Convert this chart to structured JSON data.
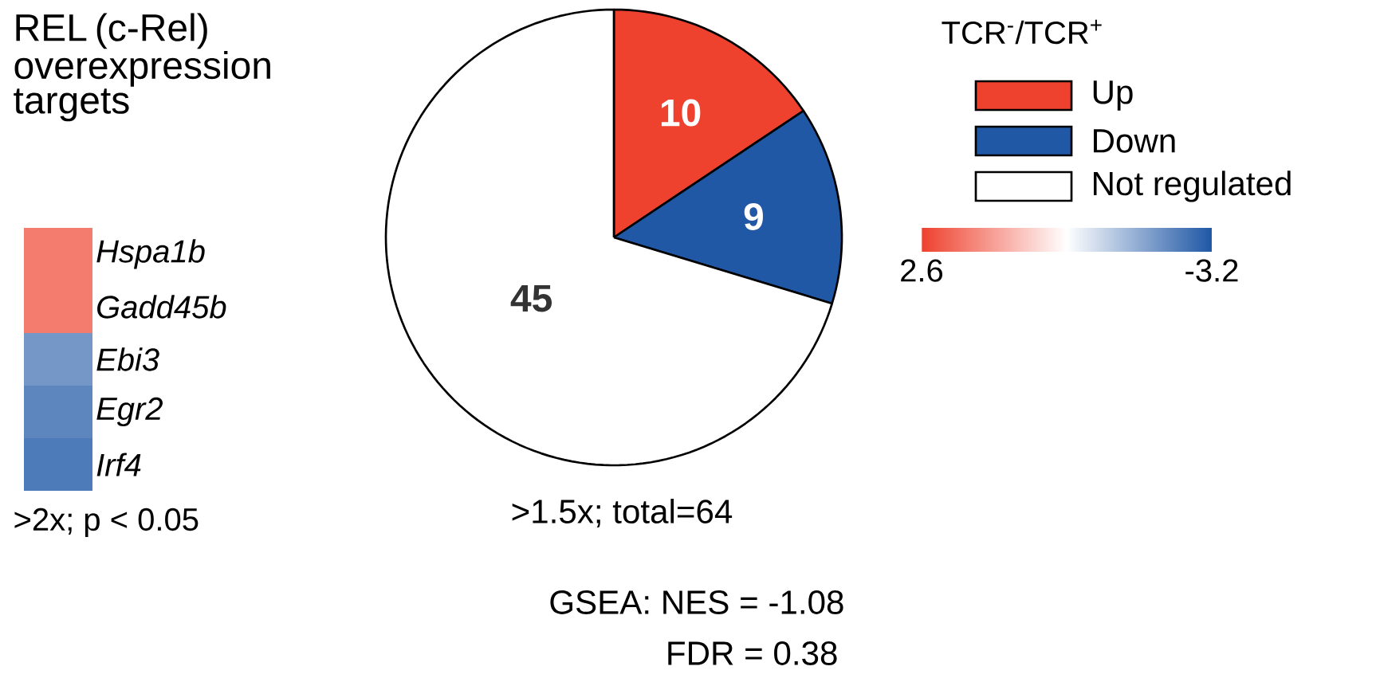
{
  "chart_data": [
    {
      "type": "heatmap",
      "title": "REL (c-Rel) overexpression targets",
      "categories": [
        null
      ],
      "y_categories": [
        "*Hspa1b*",
        "*Gadd45b*",
        "*Ebi3*",
        "*Egr2*",
        "*Irf4*"
      ],
      "cells": [
        [
          1.7
        ],
        [
          1.7
        ],
        [
          -2.1
        ],
        [
          -2.4
        ],
        [
          -2.6
        ]
      ],
      "clim": [
        2.6,
        -3.2
      ],
      "cticks": [
        2.6,
        -3.2
      ],
      "annotations": [
        ">2x; p < 0.05"
      ]
    },
    {
      "type": "pie",
      "categories": [
        "Up",
        "Down",
        "Not regulated"
      ],
      "values": [
        10,
        9,
        45
      ],
      "colors": [
        "#ee412e",
        "#2158a6",
        "#ffffff"
      ],
      "data_labels": true,
      "legend": "top right",
      "legend_title": "TCR$^{-}$/TCR$^{+}$",
      "annotations": [
        ">1.5x; total=64",
        "GSEA:  NES = -1.08",
        "FDR = 0.38"
      ]
    }
  ]
}
